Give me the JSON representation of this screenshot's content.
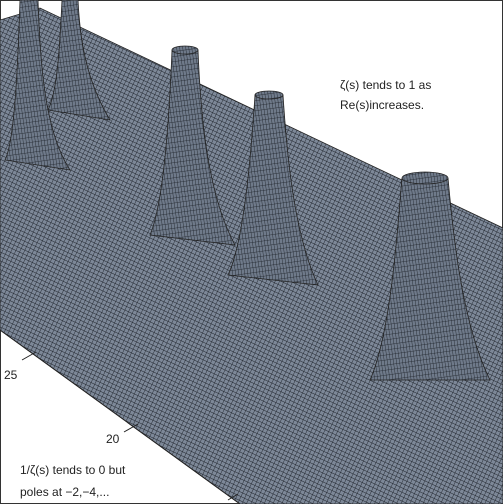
{
  "annotations": {
    "top_right": [
      "ζ(s) tends to 1 as",
      "Re(s)increases."
    ],
    "bottom_left": [
      "1/ζ(s) tends to 0 but",
      "poles at −2,−4,..."
    ]
  },
  "axis_labels": [
    "25",
    "20"
  ]
}
